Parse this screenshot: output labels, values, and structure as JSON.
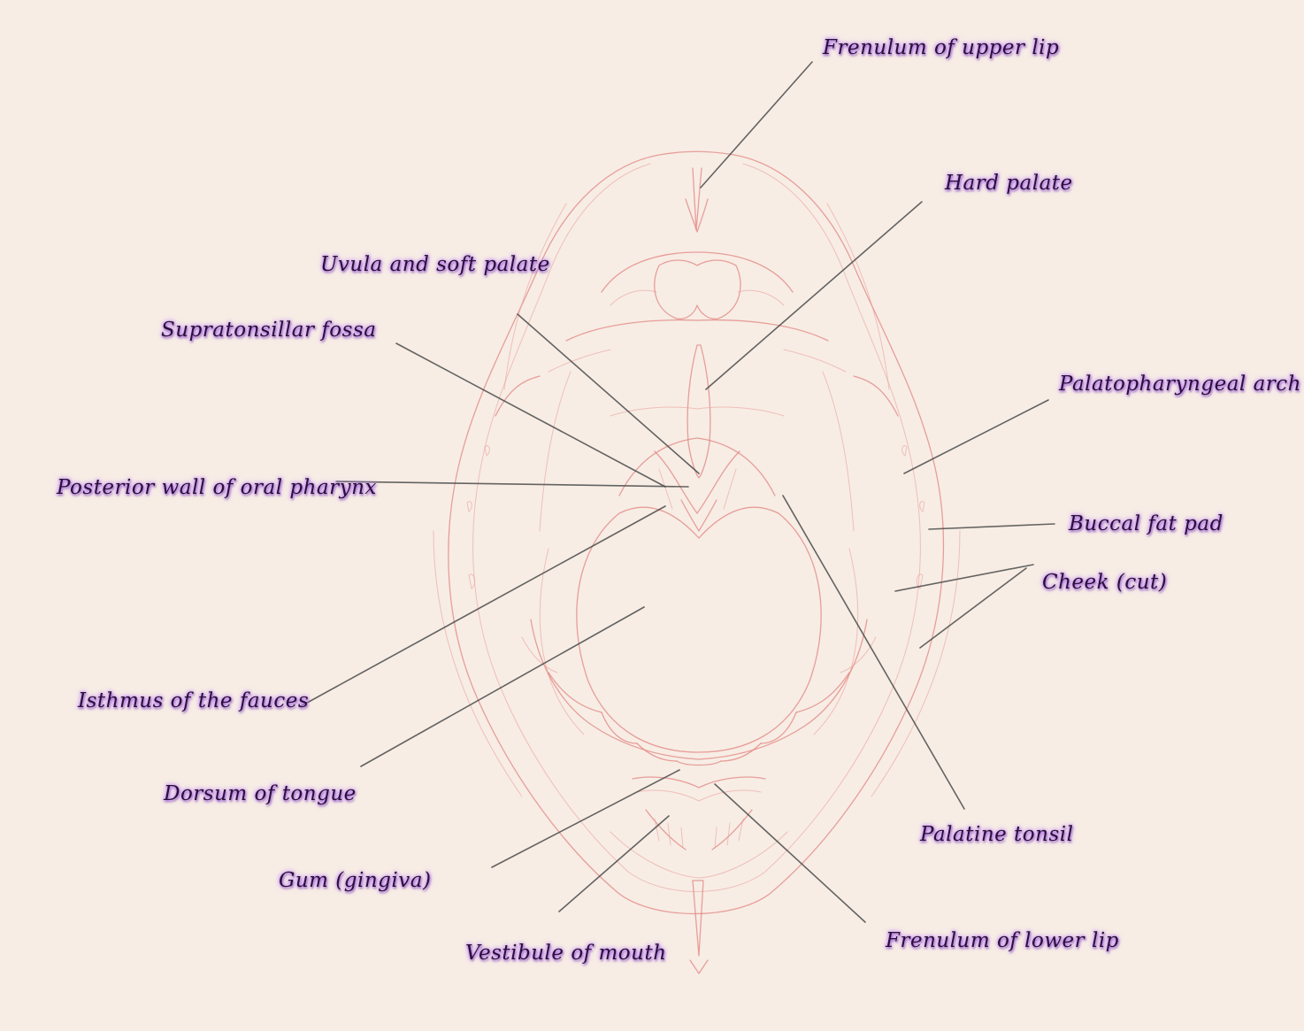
{
  "labels": {
    "frenulum_upper_lip": "Frenulum of upper lip",
    "hard_palate": "Hard palate",
    "uvula_soft_palate": "Uvula and soft palate",
    "supratonsillar_fossa": "Supratonsillar fossa",
    "palatopharyngeal_arch": "Palatopharyngeal arch",
    "posterior_wall": "Posterior wall of oral pharynx",
    "buccal_fat_pad": "Buccal fat pad",
    "cheek_cut": "Cheek (cut)",
    "isthmus_fauces": "Isthmus of the fauces",
    "dorsum_tongue": "Dorsum of tongue",
    "palatine_tonsil": "Palatine tonsil",
    "gum_gingiva": "Gum (gingiva)",
    "frenulum_lower_lip": "Frenulum of lower lip",
    "vestibule_mouth": "Vestibule of mouth"
  },
  "colors": {
    "background": "#f7ede5",
    "sketch": "#e2837f",
    "leader": "#4a4a4a",
    "label_glow": "#b06cff"
  }
}
